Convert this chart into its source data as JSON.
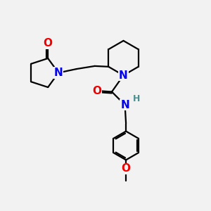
{
  "bg_color": "#f2f2f2",
  "bond_color": "#000000",
  "bond_width": 1.6,
  "atom_colors": {
    "N": "#0000ee",
    "O": "#ee0000",
    "H": "#4a9090",
    "C": "#000000"
  },
  "font_size_atom": 11,
  "font_size_h": 9,
  "font_size_small": 8
}
